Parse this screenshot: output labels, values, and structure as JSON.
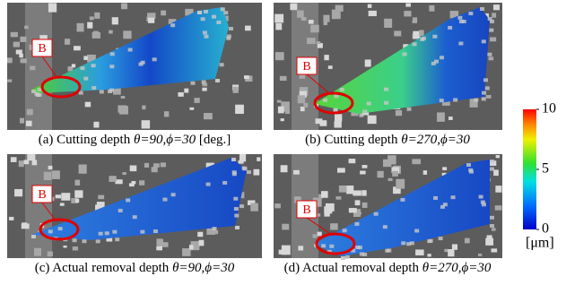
{
  "panels": [
    {
      "caption": {
        "prefix": "(a) Cutting depth ",
        "angles": "θ=90,ϕ=30",
        "suffix": " [deg.]"
      },
      "marker": "B"
    },
    {
      "caption": {
        "prefix": "(b) Cutting depth ",
        "angles": "θ=270,ϕ=30"
      },
      "marker": "B"
    },
    {
      "caption": {
        "prefix": "(c) Actual removal depth ",
        "angles": "θ=90,ϕ=30"
      },
      "marker": "B"
    },
    {
      "caption": {
        "prefix": "(d) Actual removal depth ",
        "angles": "θ=270,ϕ=30"
      },
      "marker": "B"
    }
  ],
  "colorbar": {
    "range": [
      0,
      10
    ],
    "ticks": [
      0,
      5,
      10
    ],
    "unit": "[μm]"
  }
}
